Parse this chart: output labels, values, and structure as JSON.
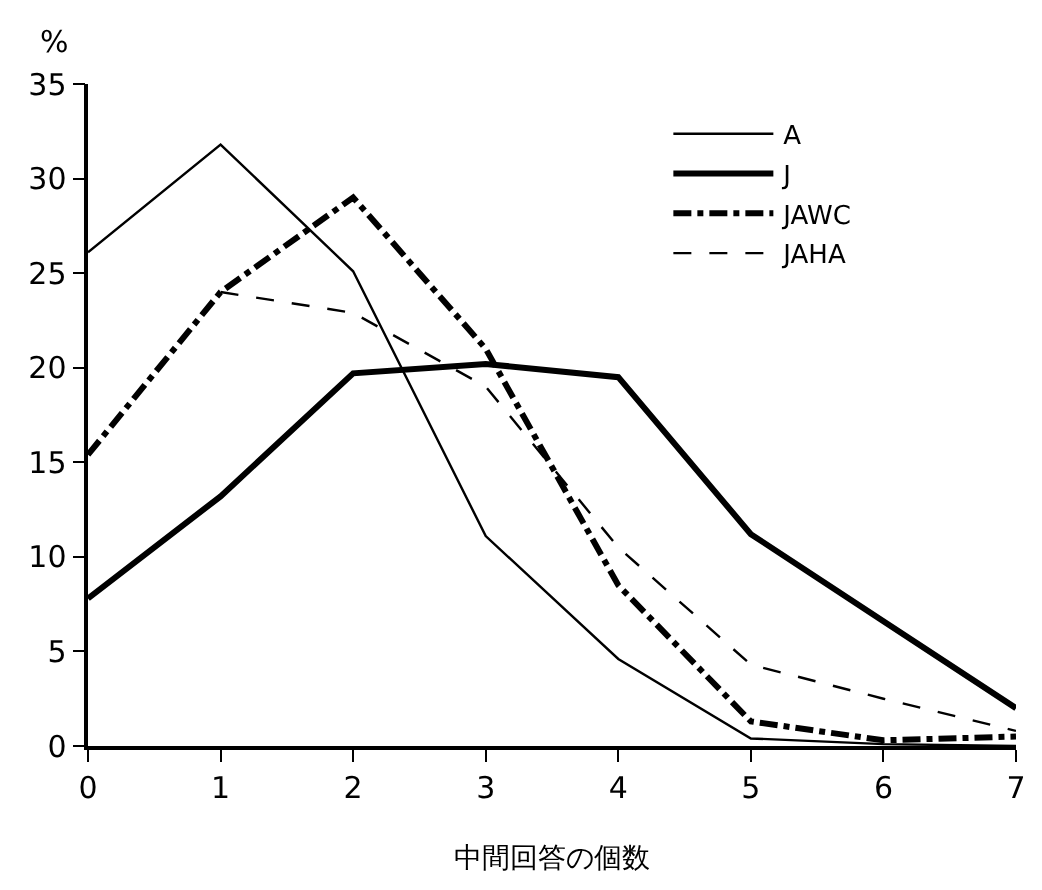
{
  "chart_data": {
    "type": "line",
    "xlabel": "中間回答の個数",
    "ylabel": "%",
    "x": [
      0,
      1,
      2,
      3,
      4,
      5,
      6,
      7
    ],
    "xlim": [
      0,
      7
    ],
    "xticks": [
      0,
      1,
      2,
      3,
      4,
      5,
      6,
      7
    ],
    "ylim": [
      0,
      35
    ],
    "yticks": [
      0,
      5,
      10,
      15,
      20,
      25,
      30,
      35
    ],
    "legend": "top right",
    "marker": "none",
    "series": [
      {
        "name": "A",
        "color": "#000000",
        "line_style": "solid",
        "values": [
          26.1,
          31.8,
          25.1,
          11.1,
          4.6,
          0.4,
          0.1,
          0.0
        ]
      },
      {
        "name": "J",
        "color": "#000000",
        "line_style": "solid",
        "values": [
          7.8,
          13.2,
          19.7,
          20.2,
          19.5,
          11.2,
          6.6,
          2.0
        ]
      },
      {
        "name": "JAWC",
        "color": "#000000",
        "line_style": "dashdot",
        "values": [
          15.4,
          24.0,
          29.0,
          21.0,
          8.5,
          1.3,
          0.3,
          0.5
        ]
      },
      {
        "name": "JAHA",
        "color": "#000000",
        "line_style": "dashed",
        "values": [
          null,
          24.0,
          22.9,
          19.0,
          10.5,
          4.3,
          2.5,
          0.8
        ]
      }
    ]
  }
}
